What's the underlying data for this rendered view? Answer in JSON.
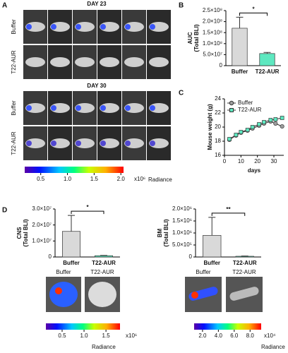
{
  "panel_a": {
    "panel_label": "A",
    "groups": [
      {
        "title": "DAY 23",
        "rows": [
          "Buffer",
          "T22-AUR"
        ]
      },
      {
        "title": "DAY 30",
        "rows": [
          "Buffer",
          "T22-AUR"
        ]
      }
    ],
    "colorbar": {
      "lim": [
        0.2,
        2.05
      ],
      "ticks": [
        {
          "value": 0.5,
          "label": "0.5"
        },
        {
          "value": 1,
          "label": "1.0"
        },
        {
          "value": 1.5,
          "label": "1.5"
        },
        {
          "value": 2,
          "label": "2.0"
        }
      ],
      "unit": "x10⁶",
      "label": "Radiance"
    }
  },
  "chart_data": [
    {
      "type": "bar",
      "panel_label": "B",
      "ylabel": [
        "AUC",
        "(Total BLI)"
      ],
      "categories": [
        "Buffer",
        "T22-AUR"
      ],
      "values": [
        170000000,
        55000000
      ],
      "errors": [
        50000000,
        5000000
      ],
      "colors": [
        "#d9d9d9",
        "#5ee8c0"
      ],
      "ylim": [
        0,
        250000000
      ],
      "yticks": [
        0,
        {
          "value": 50000000,
          "label": "5.0×10⁷"
        },
        {
          "value": 100000000,
          "label": "1.0×10⁸"
        },
        {
          "value": 150000000,
          "label": "1.5×10⁸"
        },
        {
          "value": 200000000,
          "label": "2.0×10⁸"
        },
        {
          "value": 250000000,
          "label": "2.5×10⁸"
        }
      ],
      "annotation": "*"
    },
    {
      "type": "line",
      "panel_label": "C",
      "ylabel": [
        "Mouse weight (g)"
      ],
      "xlabel": "days",
      "legend": "upper left",
      "x": [
        3,
        7,
        10,
        14,
        17,
        21,
        24,
        28,
        31,
        35
      ],
      "series": [
        {
          "name": "Buffer",
          "color": "#9e9e9e",
          "marker": "circle",
          "values": [
            18.2,
            18.8,
            19.2,
            19.5,
            19.8,
            20.2,
            20.5,
            20.8,
            20.5,
            20.1
          ]
        },
        {
          "name": "T22-AUR",
          "color": "#5ee8c0",
          "marker": "square",
          "values": [
            18.3,
            18.9,
            19.3,
            19.6,
            20.0,
            20.4,
            20.7,
            21.0,
            21.1,
            21.3
          ]
        }
      ],
      "xlim": [
        0,
        36
      ],
      "xticks": [
        0,
        10,
        20,
        30
      ],
      "ylim": [
        16,
        24
      ],
      "yticks": [
        16,
        18,
        20,
        22,
        24
      ]
    },
    {
      "type": "bar",
      "ylabel": [
        "CNS",
        "(Total BLI)"
      ],
      "categories": [
        "Buffer",
        "T22-AUR"
      ],
      "values": [
        16000000,
        800000
      ],
      "errors": [
        10000000,
        200000
      ],
      "colors": [
        "#d9d9d9",
        "#5ee8c0"
      ],
      "ylim": [
        0,
        30000000
      ],
      "yticks": [
        0,
        {
          "value": 10000000,
          "label": "1.0×10⁷"
        },
        {
          "value": 20000000,
          "label": "2.0×10⁷"
        },
        {
          "value": 30000000,
          "label": "3.0×10⁷"
        }
      ],
      "annotation": "*"
    },
    {
      "type": "bar",
      "ylabel": [
        "BM",
        "(Total BLI)"
      ],
      "categories": [
        "Buffer",
        "T22-AUR"
      ],
      "values": [
        900000,
        30000
      ],
      "errors": [
        750000,
        10000
      ],
      "colors": [
        "#d9d9d9",
        "#5ee8c0"
      ],
      "ylim": [
        0,
        2000000
      ],
      "yticks": [
        0,
        {
          "value": 500000,
          "label": "5.0×10⁵"
        },
        {
          "value": 1000000,
          "label": "1.0×10⁶"
        },
        {
          "value": 1500000,
          "label": "1.5×10⁶"
        },
        {
          "value": 2000000,
          "label": "2.0×10⁶"
        }
      ],
      "annotation": "**"
    }
  ],
  "panel_d_images": {
    "panel_label": "D",
    "images": [
      {
        "labels": [
          "Buffer",
          "T22-AUR"
        ],
        "colorbar": {
          "lim": [
            0.13,
            1.82
          ],
          "ticks": [
            {
              "value": 0.5,
              "label": "0.5"
            },
            {
              "value": 1,
              "label": "1.0"
            },
            {
              "value": 1.5,
              "label": "1.5"
            }
          ],
          "unit": "x10⁶",
          "label": "Radiance"
        }
      },
      {
        "labels": [
          "Buffer",
          "T22-AUR"
        ],
        "colorbar": {
          "lim": [
            0.94,
            9.4
          ],
          "ticks": [
            {
              "value": 2,
              "label": "2.0"
            },
            {
              "value": 4,
              "label": "4.0"
            },
            {
              "value": 6,
              "label": "6.0"
            },
            {
              "value": 8,
              "label": "8.0"
            }
          ],
          "unit": "x10⁴",
          "label": "Radiance"
        }
      }
    ]
  }
}
